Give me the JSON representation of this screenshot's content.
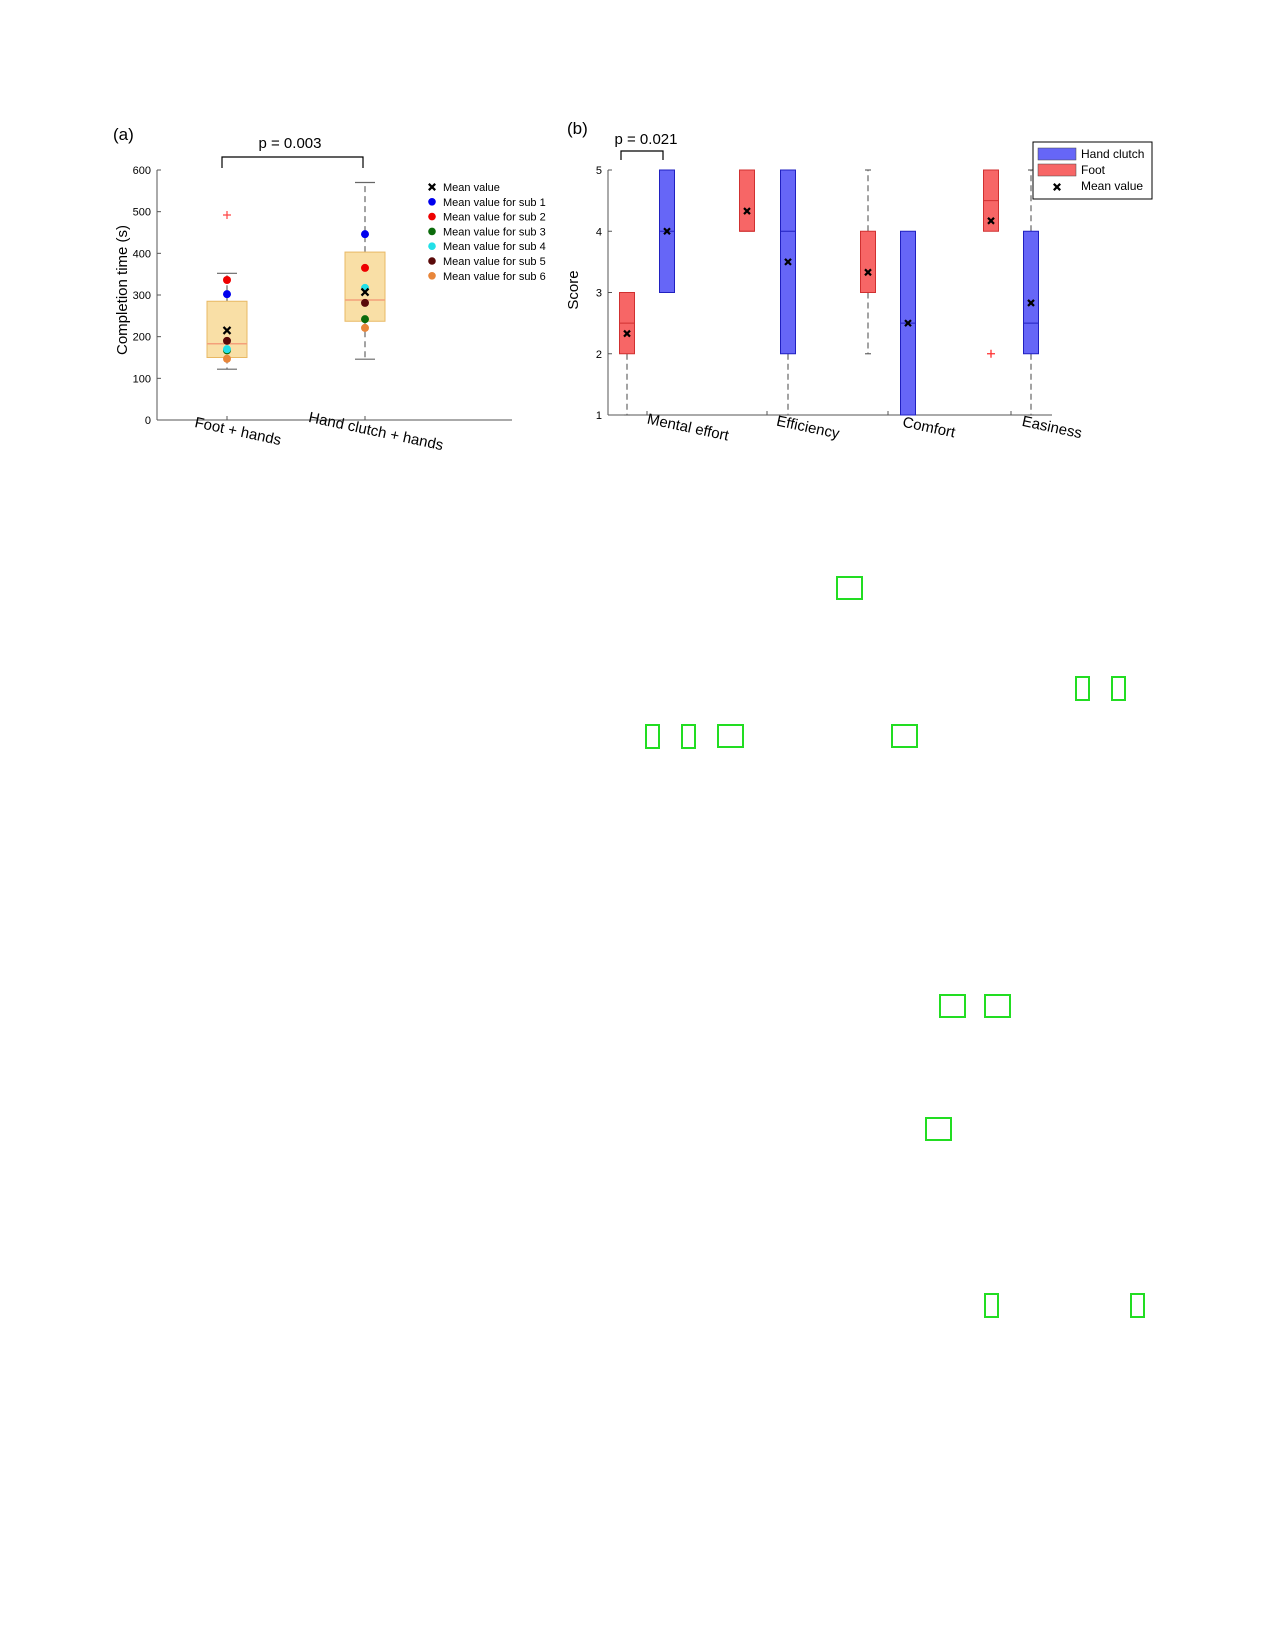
{
  "chart_data": [
    {
      "id": "a",
      "type": "box",
      "panel_label": "(a)",
      "annotation": "p = 0.003",
      "ylabel": "Completion time (s)",
      "ylim": [
        0,
        600
      ],
      "yticks": [
        0,
        100,
        200,
        300,
        400,
        500,
        600
      ],
      "categories": [
        "Foot + hands",
        "Hand clutch + hands"
      ],
      "box_color": "#f9dfa6",
      "box_edge": "#e8b864",
      "median_color": "#f4a07a",
      "boxes": [
        {
          "category": "Foot + hands",
          "q1": 150,
          "median": 183,
          "q3": 285,
          "whisker_low": 122,
          "whisker_high": 352,
          "outliers": [
            492
          ],
          "mean": 215
        },
        {
          "category": "Hand clutch + hands",
          "q1": 237,
          "median": 288,
          "q3": 403,
          "whisker_low": 146,
          "whisker_high": 570,
          "outliers": [],
          "mean": 307
        }
      ],
      "legend": [
        {
          "label": "Mean value",
          "marker": "x",
          "color": "#000000"
        },
        {
          "label": "Mean value for sub 1",
          "marker": "o",
          "color": "#0000ee"
        },
        {
          "label": "Mean value for sub 2",
          "marker": "o",
          "color": "#ee0000"
        },
        {
          "label": "Mean value for sub 3",
          "marker": "o",
          "color": "#0b6b0b"
        },
        {
          "label": "Mean value for sub 4",
          "marker": "o",
          "color": "#22e0e8"
        },
        {
          "label": "Mean value for sub 5",
          "marker": "o",
          "color": "#5a0a0a"
        },
        {
          "label": "Mean value for sub 6",
          "marker": "o",
          "color": "#e8863a"
        }
      ],
      "subject_means": {
        "Foot + hands": [
          302,
          336,
          167,
          170,
          190,
          147
        ],
        "Hand clutch + hands": [
          446,
          365,
          242,
          317,
          281,
          221
        ]
      }
    },
    {
      "id": "b",
      "type": "box",
      "panel_label": "(b)",
      "annotation": "p = 0.021",
      "ylabel": "Score",
      "ylim": [
        1,
        5
      ],
      "yticks": [
        1,
        2,
        3,
        4,
        5
      ],
      "categories": [
        "Mental effort",
        "Efficiency",
        "Comfort",
        "Easiness"
      ],
      "series": [
        {
          "name": "Foot",
          "color": "#f76666",
          "boxes": [
            {
              "category": "Mental effort",
              "q1": 2,
              "median": 2.5,
              "q3": 3,
              "whisker_low": 1,
              "whisker_high": 3,
              "mean": 2.33,
              "outliers": []
            },
            {
              "category": "Efficiency",
              "q1": 4,
              "median": 4,
              "q3": 5,
              "whisker_low": 4,
              "whisker_high": 5,
              "mean": 4.33,
              "outliers": []
            },
            {
              "category": "Comfort",
              "q1": 3,
              "median": 3,
              "q3": 4,
              "whisker_low": 2,
              "whisker_high": 5,
              "mean": 3.33,
              "outliers": []
            },
            {
              "category": "Easiness",
              "q1": 4,
              "median": 4.5,
              "q3": 5,
              "whisker_low": 4,
              "whisker_high": 5,
              "mean": 4.17,
              "outliers": [
                2
              ]
            }
          ]
        },
        {
          "name": "Hand clutch",
          "color": "#6666f7",
          "boxes": [
            {
              "category": "Mental effort",
              "q1": 3,
              "median": 4,
              "q3": 5,
              "whisker_low": 3,
              "whisker_high": 5,
              "mean": 4,
              "outliers": []
            },
            {
              "category": "Efficiency",
              "q1": 2,
              "median": 4,
              "q3": 5,
              "whisker_low": 1,
              "whisker_high": 5,
              "mean": 3.5,
              "outliers": []
            },
            {
              "category": "Comfort",
              "q1": 1,
              "median": 2.5,
              "q3": 4,
              "whisker_low": 1,
              "whisker_high": 4,
              "mean": 2.5,
              "outliers": []
            },
            {
              "category": "Easiness",
              "q1": 2,
              "median": 2.5,
              "q3": 4,
              "whisker_low": 1,
              "whisker_high": 5,
              "mean": 2.83,
              "outliers": []
            }
          ]
        }
      ],
      "legend": [
        {
          "label": "Hand clutch",
          "swatch": "#6666f7"
        },
        {
          "label": "Foot",
          "swatch": "#f76666"
        },
        {
          "label": "Mean value",
          "marker": "x",
          "color": "#000000"
        }
      ]
    }
  ]
}
